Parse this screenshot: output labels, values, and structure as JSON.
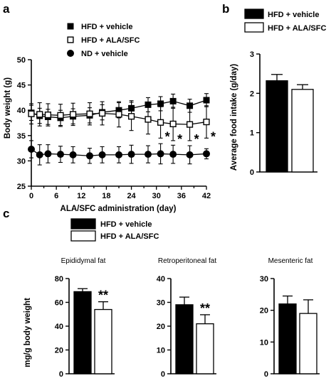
{
  "panels": {
    "a": "a",
    "b": "b",
    "c": "c"
  },
  "chart_data": [
    {
      "id": "a",
      "type": "line",
      "xlabel": "ALA/SFC administration (day)",
      "ylabel": "Body weight (g)",
      "xlim": [
        0,
        42
      ],
      "ylim": [
        25,
        50
      ],
      "xticks": [
        0,
        6,
        12,
        18,
        24,
        30,
        36,
        42
      ],
      "yticks": [
        25,
        30,
        35,
        40,
        45,
        50
      ],
      "legend": "top-left",
      "x": [
        0,
        2,
        4,
        7,
        10,
        14,
        17,
        21,
        24,
        28,
        31,
        34,
        38,
        42
      ],
      "series": [
        {
          "name": "HFD + vehicle",
          "marker": "square-filled",
          "values": [
            39.5,
            38.9,
            38.7,
            38.5,
            38.8,
            39.0,
            39.6,
            40.0,
            40.4,
            41.1,
            41.3,
            41.8,
            40.9,
            42.0
          ],
          "err": [
            1.5,
            1.5,
            1.5,
            1.5,
            1.5,
            1.5,
            1.5,
            1.5,
            1.5,
            1.4,
            1.4,
            1.4,
            1.3,
            1.3
          ]
        },
        {
          "name": "HFD + ALA/SFC",
          "marker": "square-open",
          "values": [
            39.3,
            39.2,
            39.1,
            39.0,
            39.2,
            39.3,
            39.4,
            39.2,
            38.8,
            38.2,
            37.6,
            37.3,
            37.2,
            37.7
          ],
          "err": [
            2.0,
            2.3,
            2.2,
            2.2,
            2.2,
            2.2,
            2.3,
            2.5,
            2.8,
            2.9,
            3.1,
            3.3,
            3.2,
            3.2
          ]
        },
        {
          "name": "ND + vehicle",
          "marker": "circle-filled",
          "values": [
            32.3,
            31.2,
            31.4,
            31.3,
            31.2,
            31.0,
            31.2,
            31.2,
            31.3,
            31.3,
            31.4,
            31.3,
            31.2,
            31.4
          ],
          "err": [
            1.7,
            2.0,
            1.8,
            1.6,
            1.6,
            1.5,
            1.6,
            1.6,
            1.8,
            1.7,
            2.0,
            1.8,
            1.8,
            1.0
          ]
        }
      ],
      "annotations": [
        {
          "x": 31,
          "text": "*"
        },
        {
          "x": 34,
          "text": "*"
        },
        {
          "x": 38,
          "text": "*"
        },
        {
          "x": 42,
          "text": "*"
        }
      ]
    },
    {
      "id": "b",
      "type": "bar",
      "ylabel": "Average food intake (g/day)",
      "ylim": [
        0,
        3
      ],
      "yticks": [
        0,
        1,
        2,
        3
      ],
      "legend": "top",
      "categories": [
        "HFD + vehicle",
        "HFD + ALA/SFC"
      ],
      "values": [
        2.32,
        2.1
      ],
      "err": [
        0.16,
        0.12
      ]
    },
    {
      "id": "c",
      "type": "bar",
      "legend": "top-left",
      "series_names": [
        "HFD + vehicle",
        "HFD + ALA/SFC"
      ],
      "ylabel": "mg/g body weight",
      "groups": [
        {
          "title": "Epididymal fat",
          "ylim": [
            0,
            80
          ],
          "yticks": [
            0,
            20,
            40,
            60,
            80
          ],
          "values": [
            69,
            54
          ],
          "err": [
            2.5,
            6.5
          ],
          "annotation": "**"
        },
        {
          "title": "Retroperitoneal fat",
          "ylim": [
            0,
            40
          ],
          "yticks": [
            0,
            10,
            20,
            30,
            40
          ],
          "values": [
            29,
            21
          ],
          "err": [
            3.2,
            3.8
          ],
          "annotation": "**"
        },
        {
          "title": "Mesenteric fat",
          "ylim": [
            0,
            30
          ],
          "yticks": [
            0,
            10,
            20,
            30
          ],
          "values": [
            22,
            19
          ],
          "err": [
            2.5,
            4.3
          ],
          "annotation": ""
        }
      ]
    }
  ]
}
